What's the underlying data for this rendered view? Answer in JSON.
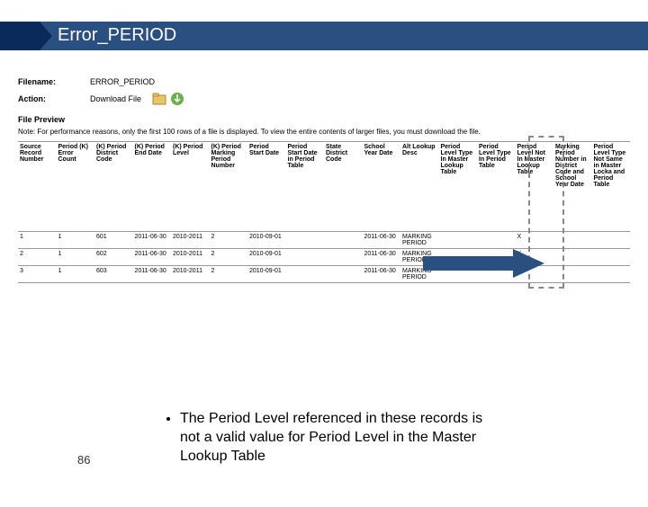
{
  "title": "Error_PERIOD",
  "title_bar_color": "#2a5082",
  "chevron_color": "#0b2a5c",
  "meta": {
    "filename_label": "Filename:",
    "filename_value": "ERROR_PERIOD",
    "action_label": "Action:",
    "action_value": "Download File"
  },
  "section_header": "File Preview",
  "note": "Note: For performance reasons, only the first 100 rows of a file is displayed. To view the entire contents of larger files, you must download the file.",
  "columns": [
    "Source Record Number",
    "Period (K) Error Count",
    "(K) Period District Code",
    "(K) Period End Date",
    "(K) Period Level",
    "(K) Period Marking Period Number",
    "Period Start Date",
    "Period Start Date in Period Table",
    "State District Code",
    "School Year Date",
    "Alt Lookup Desc",
    "Period Level Type In Master Lookup Table",
    "Period Level Type In Period Table",
    "Period Level Not In Master Lookup Table",
    "Marking Period Number in District Code and School Year Date",
    "Period Level Type Not Same in Master Locka and Period Table"
  ],
  "rows": [
    [
      "1",
      "1",
      "601",
      "2011-06-30",
      "2010-2011",
      "2",
      "2010-09-01",
      "",
      "",
      "2011-06-30",
      "MARKING PERIOD",
      "",
      "",
      "X",
      "",
      ""
    ],
    [
      "2",
      "1",
      "602",
      "2011-06-30",
      "2010-2011",
      "2",
      "2010-09-01",
      "",
      "",
      "2011-06-30",
      "MARKING PERIOD",
      "",
      "",
      "X",
      "",
      ""
    ],
    [
      "3",
      "1",
      "603",
      "2011-06-30",
      "2010-2011",
      "2",
      "2010-09-01",
      "",
      "",
      "2011-06-30",
      "MARKING PERIOD",
      "",
      "",
      "X",
      "",
      ""
    ]
  ],
  "bullet": "The Period Level referenced in these records is not a valid value for Period Level in the Master Lookup Table",
  "page_number": "86",
  "arrow_color": "#2a5082",
  "highlight_border": "#888888"
}
